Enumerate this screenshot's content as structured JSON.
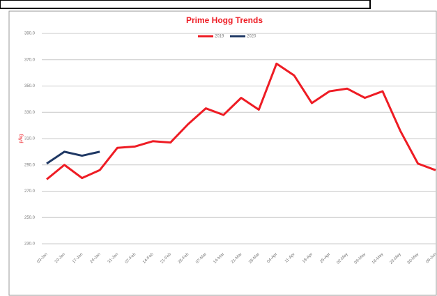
{
  "chart_data": {
    "type": "line",
    "title": "Prime Hogg Trends",
    "y_label": "p/kg",
    "categories": [
      "03-Jan",
      "10-Jan",
      "17-Jan",
      "24-Jan",
      "31-Jan",
      "07-Feb",
      "14-Feb",
      "21-Feb",
      "28-Feb",
      "07-Mar",
      "14-Mar",
      "21-Mar",
      "28-Mar",
      "04-Apr",
      "11-Apr",
      "18-Apr",
      "25-Apr",
      "02-May",
      "09-May",
      "16-May",
      "23-May",
      "30-May",
      "06-Jun"
    ],
    "series": [
      {
        "name": "2019",
        "color": "#ee1c24",
        "values": [
          279,
          290,
          280,
          286,
          303,
          304,
          308,
          307,
          321,
          333,
          328,
          341,
          332,
          367,
          358,
          337,
          346,
          348,
          341,
          346,
          316,
          291,
          286
        ]
      },
      {
        "name": "2020",
        "color": "#1f3864",
        "values": [
          291,
          300,
          297,
          300,
          null,
          null,
          null,
          null,
          null,
          null,
          null,
          null,
          null,
          null,
          null,
          null,
          null,
          null,
          null,
          null,
          null,
          null,
          null
        ]
      }
    ],
    "ylim": [
      230,
      390
    ],
    "yticks": [
      {
        "value": 230,
        "label": "230.0"
      },
      {
        "value": 250,
        "label": "250.0"
      },
      {
        "value": 270,
        "label": "270.0"
      },
      {
        "value": 290,
        "label": "290.0"
      },
      {
        "value": 310,
        "label": "310.0"
      },
      {
        "value": 330,
        "label": "330.0"
      },
      {
        "value": 350,
        "label": "350.0"
      },
      {
        "value": 370,
        "label": "370.0"
      },
      {
        "value": 390,
        "label": "390.0"
      }
    ],
    "grid": true,
    "legend": "top"
  }
}
